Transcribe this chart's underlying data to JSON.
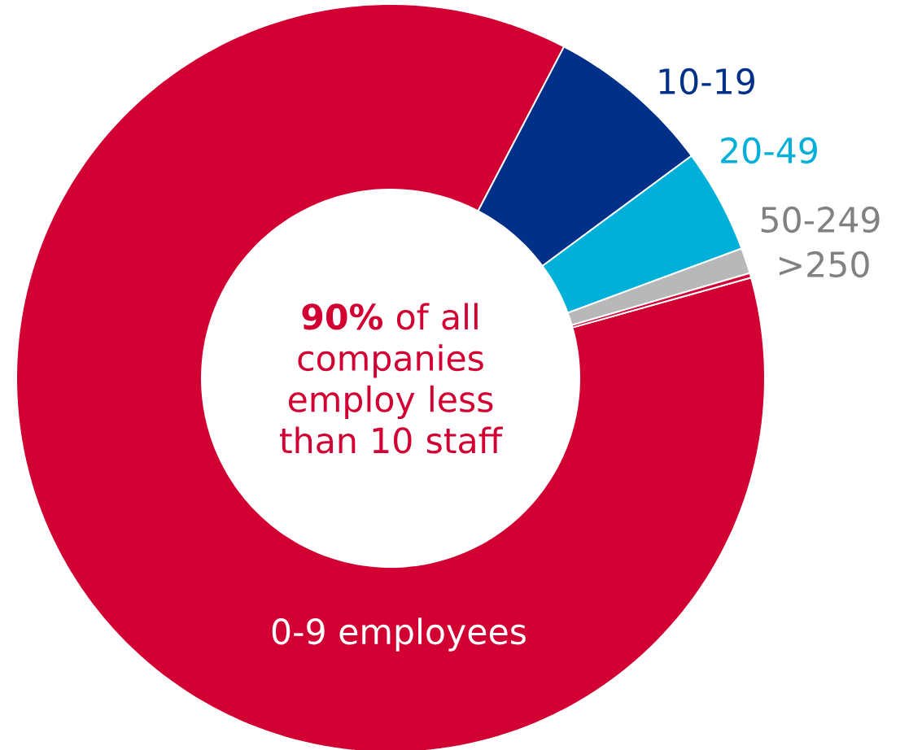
{
  "chart_data": {
    "type": "donut",
    "categories": [
      "0-9 employees",
      "10-19",
      "20-49",
      "50-249",
      ">250"
    ],
    "values": [
      87.0,
      7.2,
      4.5,
      1.1,
      0.2
    ],
    "colors": [
      "#d20032",
      "#003087",
      "#00b0d8",
      "#b8b8b8",
      "#d20032"
    ],
    "annotations": [
      "**90%** of all companies employ less than 10 staff"
    ]
  }
}
